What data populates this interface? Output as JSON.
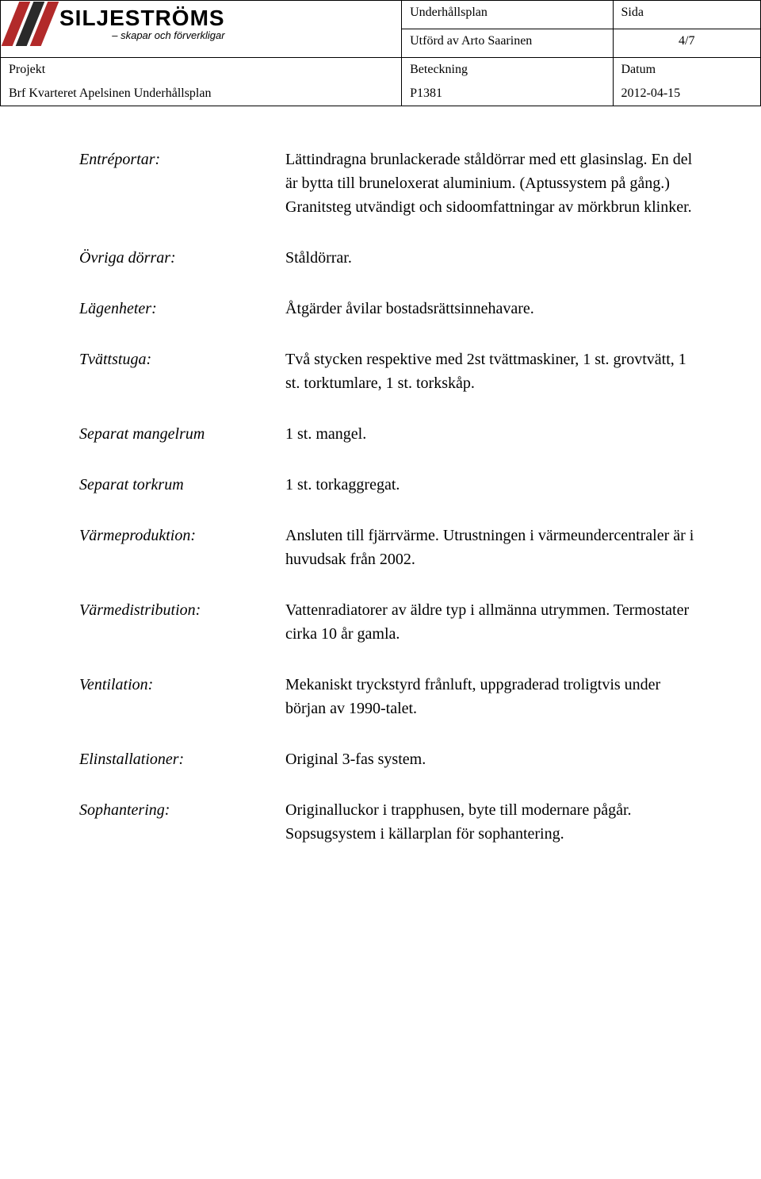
{
  "logo": {
    "name": "SILJESTRÖMS",
    "tagline": "– skapar och förverkligar"
  },
  "header": {
    "doc_title": "Underhållsplan",
    "author_line": "Utförd av Arto Saarinen",
    "sida_label": "Sida",
    "page_num": "4/7",
    "projekt_label": "Projekt",
    "projekt_value": "Brf Kvarteret Apelsinen Underhållsplan",
    "beteck_label": "Beteckning",
    "beteck_value": "P1381",
    "datum_label": "Datum",
    "datum_value": "2012-04-15"
  },
  "rows": {
    "entreportar": {
      "label": "Entréportar:",
      "value": "Lättindragna brunlackerade ståldörrar med ett glasinslag. En del är bytta till bruneloxerat aluminium. (Aptussystem på gång.) Granitsteg utvändigt och sidoomfattningar av mörkbrun klinker."
    },
    "ovriga": {
      "label": "Övriga dörrar:",
      "value": "Ståldörrar."
    },
    "lagenheter": {
      "label": "Lägenheter:",
      "value": "Åtgärder åvilar bostadsrättsinnehavare."
    },
    "tvattstuga": {
      "label": "Tvättstuga:",
      "value": "Två stycken respektive med 2st tvättmaskiner, 1 st. grovtvätt, 1 st. torktumlare, 1 st. torkskåp."
    },
    "mangelrum": {
      "label": "Separat mangelrum",
      "value": "1 st. mangel."
    },
    "torkrum": {
      "label": "Separat torkrum",
      "value": "1 st. torkaggregat."
    },
    "varmeprod": {
      "label": "Värmeproduktion:",
      "value": "Ansluten till fjärrvärme. Utrustningen i värmeundercentraler är i huvudsak från 2002."
    },
    "varmdist": {
      "label": "Värmedistribution:",
      "value": "Vattenradiatorer av äldre typ i allmänna utrymmen. Termostater cirka 10 år gamla."
    },
    "ventilation": {
      "label": "Ventilation:",
      "value": "Mekaniskt tryckstyrd frånluft, uppgraderad troligtvis under början av 1990-talet."
    },
    "elinstall": {
      "label": "Elinstallationer:",
      "value": "Original 3-fas system."
    },
    "sophantering": {
      "label": "Sophantering:",
      "value": "Originalluckor i trapphusen, byte till modernare pågår. Sopsugsystem i källarplan för sophantering."
    }
  }
}
